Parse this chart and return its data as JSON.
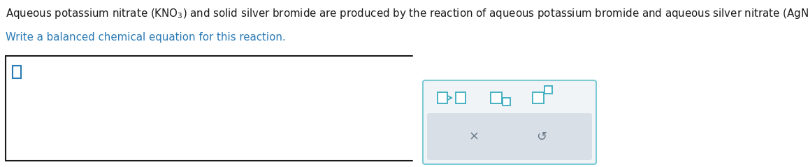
{
  "bg_color": "#ffffff",
  "title_color": "#1a1a1a",
  "subtitle_color": "#2a7ab5",
  "input_border_color": "#1a1a1a",
  "cursor_color": "#2a7ab5",
  "toolbar_bg": "#f0f4f6",
  "toolbar_border": "#7ecbd4",
  "toolbar_icon_color": "#3aacbe",
  "action_bg": "#d8dfe6",
  "action_text_color": "#6a7a8a",
  "fig_w": 11.56,
  "fig_h": 2.39,
  "dpi": 100
}
